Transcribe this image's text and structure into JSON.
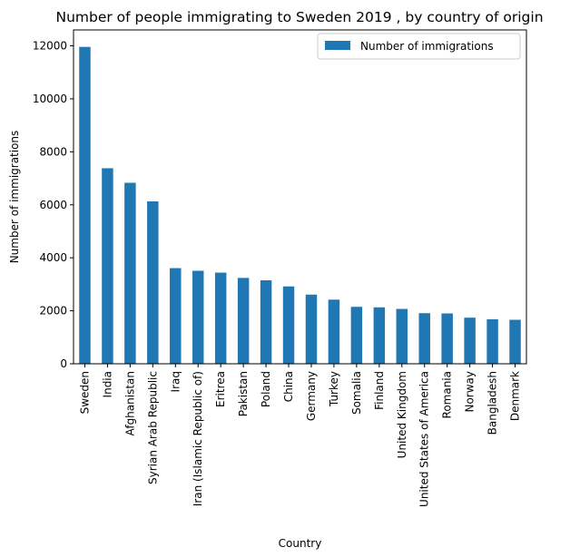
{
  "chart_data": {
    "type": "bar",
    "title": "Number of people immigrating to Sweden 2019 , by country of origin",
    "xlabel": "Country",
    "ylabel": "Number of immigrations",
    "ylim": [
      0,
      12600
    ],
    "yticks": [
      0,
      2000,
      4000,
      6000,
      8000,
      10000,
      12000
    ],
    "grid": false,
    "legend_position": "top-right",
    "categories": [
      "Sweden",
      "India",
      "Afghanistan",
      "Syrian Arab Republic",
      "Iraq",
      "Iran (Islamic Republic of)",
      "Eritrea",
      "Pakistan",
      "Poland",
      "China",
      "Germany",
      "Turkey",
      "Somalia",
      "Finland",
      "United Kingdom",
      "United States of America",
      "Romania",
      "Norway",
      "Bangladesh",
      "Denmark"
    ],
    "series": [
      {
        "name": "Number of immigrations",
        "color": "#1f77b4",
        "values": [
          11960,
          7380,
          6830,
          6130,
          3610,
          3510,
          3440,
          3240,
          3150,
          2920,
          2610,
          2420,
          2150,
          2130,
          2070,
          1910,
          1900,
          1740,
          1680,
          1660
        ]
      }
    ]
  }
}
